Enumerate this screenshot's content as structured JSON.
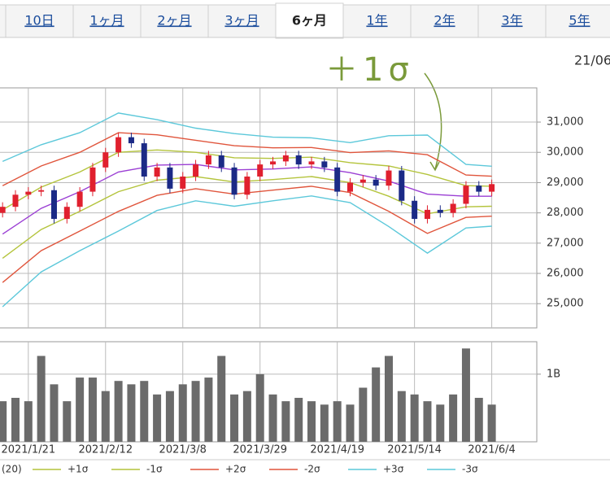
{
  "tabs": {
    "items": [
      "10日",
      "1ヶ月",
      "2ヶ月",
      "3ヶ月",
      "6ヶ月",
      "1年",
      "2年",
      "3年",
      "5年"
    ],
    "active": 4
  },
  "date_label": "21/06",
  "chart_data": [
    {
      "type": "candlestick",
      "annotation": "＋1σ",
      "x": [
        0,
        1,
        2,
        3,
        4,
        5,
        6,
        7,
        8,
        9,
        10,
        11,
        12,
        13,
        14,
        15,
        16,
        17,
        18,
        19,
        20,
        21,
        22,
        23,
        24,
        25,
        26,
        27,
        28,
        29,
        30,
        31,
        32,
        33,
        34,
        35,
        36,
        37,
        38
      ],
      "open": [
        28000,
        28200,
        28600,
        28700,
        28750,
        27800,
        28200,
        28700,
        29500,
        30000,
        30500,
        30300,
        29200,
        29500,
        28800,
        29200,
        29600,
        29900,
        29500,
        28600,
        29200,
        29600,
        29700,
        29900,
        29600,
        29700,
        29500,
        28700,
        29000,
        29100,
        28900,
        29400,
        28400,
        27800,
        28100,
        28000,
        28300,
        28900,
        28700
      ],
      "high": [
        28350,
        28750,
        28850,
        28900,
        28900,
        28350,
        28850,
        29650,
        30150,
        30650,
        30650,
        30450,
        29650,
        29650,
        29350,
        29750,
        30050,
        30050,
        29650,
        29350,
        29750,
        29850,
        30050,
        30050,
        29850,
        29850,
        29650,
        29150,
        29250,
        29250,
        29550,
        29550,
        28550,
        28250,
        28250,
        28450,
        29050,
        29050,
        29100
      ],
      "low": [
        27850,
        28050,
        28450,
        28550,
        27650,
        27650,
        28050,
        28550,
        29350,
        29850,
        30150,
        29050,
        29050,
        28650,
        28650,
        29050,
        29450,
        29350,
        28450,
        28450,
        29050,
        29450,
        29550,
        29450,
        29450,
        29350,
        28550,
        28550,
        28850,
        28750,
        28750,
        28250,
        27650,
        27650,
        27850,
        27850,
        28150,
        28550,
        28550
      ],
      "close": [
        28200,
        28600,
        28700,
        28750,
        27800,
        28200,
        28700,
        29500,
        30000,
        30500,
        30300,
        29200,
        29500,
        28800,
        29200,
        29600,
        29900,
        29500,
        28600,
        29200,
        29600,
        29700,
        29900,
        29600,
        29700,
        29500,
        28700,
        29000,
        29100,
        28900,
        29400,
        28400,
        27800,
        28100,
        28000,
        28300,
        28900,
        28700,
        28950
      ],
      "up_color": "#e0202e",
      "down_color": "#1b2a86",
      "series": [
        {
          "name": "(20)",
          "color": "#9b3fd4",
          "x": [
            0,
            3,
            6,
            9,
            12,
            15,
            18,
            21,
            24,
            27,
            30,
            33,
            36,
            38
          ],
          "values": [
            27300,
            28150,
            28700,
            29350,
            29580,
            29600,
            29420,
            29450,
            29520,
            29330,
            29050,
            28620,
            28550,
            28550
          ]
        },
        {
          "name": "+1σ",
          "color": "#b4c43c",
          "x": [
            0,
            3,
            6,
            9,
            12,
            15,
            18,
            21,
            24,
            27,
            30,
            33,
            36,
            38
          ],
          "values": [
            28100,
            28850,
            29350,
            30000,
            30080,
            30000,
            29820,
            29800,
            29840,
            29660,
            29550,
            29270,
            28900,
            28880
          ]
        },
        {
          "name": "-1σ",
          "color": "#b4c43c",
          "x": [
            0,
            3,
            6,
            9,
            12,
            15,
            18,
            21,
            24,
            27,
            30,
            33,
            36,
            38
          ],
          "values": [
            26500,
            27450,
            28050,
            28700,
            29080,
            29200,
            29020,
            29100,
            29200,
            29000,
            28550,
            27970,
            28200,
            28220
          ]
        },
        {
          "name": "+2σ",
          "color": "#e0553c",
          "x": [
            0,
            3,
            6,
            9,
            12,
            15,
            18,
            21,
            24,
            27,
            30,
            33,
            36,
            38
          ],
          "values": [
            28900,
            29550,
            30000,
            30650,
            30580,
            30400,
            30220,
            30150,
            30160,
            29990,
            30050,
            29920,
            29250,
            29210
          ]
        },
        {
          "name": "-2σ",
          "color": "#e0553c",
          "x": [
            0,
            3,
            6,
            9,
            12,
            15,
            18,
            21,
            24,
            27,
            30,
            33,
            36,
            38
          ],
          "values": [
            25700,
            26750,
            27400,
            28050,
            28580,
            28800,
            28620,
            28750,
            28880,
            28670,
            28050,
            27320,
            27850,
            27890
          ]
        },
        {
          "name": "+3σ",
          "color": "#5cc8da",
          "x": [
            0,
            3,
            6,
            9,
            12,
            15,
            18,
            21,
            24,
            27,
            30,
            33,
            36,
            38
          ],
          "values": [
            29700,
            30250,
            30650,
            31300,
            31080,
            30800,
            30620,
            30500,
            30480,
            30320,
            30550,
            30570,
            29600,
            29540
          ]
        },
        {
          "name": "-3σ",
          "color": "#5cc8da",
          "x": [
            0,
            3,
            6,
            9,
            12,
            15,
            18,
            21,
            24,
            27,
            30,
            33,
            36,
            38
          ],
          "values": [
            24900,
            26050,
            26750,
            27400,
            28080,
            28400,
            28220,
            28400,
            28560,
            28340,
            27550,
            26670,
            27500,
            27560
          ]
        }
      ],
      "xlim": [
        -0.2,
        41.5
      ],
      "ylim": [
        24200,
        32130
      ],
      "yticks": [
        {
          "value": 25000,
          "label": "25,000"
        },
        {
          "value": 26000,
          "label": "26,000"
        },
        {
          "value": 27000,
          "label": "27,000"
        },
        {
          "value": 28000,
          "label": "28,000"
        },
        {
          "value": 29000,
          "label": "29,000"
        },
        {
          "value": 30000,
          "label": "30,000"
        },
        {
          "value": 31000,
          "label": "31,000"
        }
      ],
      "grid": true
    },
    {
      "type": "bar",
      "x": [
        0,
        1,
        2,
        3,
        4,
        5,
        6,
        7,
        8,
        9,
        10,
        11,
        12,
        13,
        14,
        15,
        16,
        17,
        18,
        19,
        20,
        21,
        22,
        23,
        24,
        25,
        26,
        27,
        28,
        29,
        30,
        31,
        32,
        33,
        34,
        35,
        36,
        37,
        38
      ],
      "values": [
        600000000,
        650000000,
        600000000,
        1270000000,
        850000000,
        600000000,
        950000000,
        950000000,
        750000000,
        900000000,
        850000000,
        900000000,
        700000000,
        750000000,
        850000000,
        900000000,
        950000000,
        1270000000,
        700000000,
        750000000,
        1000000000,
        700000000,
        600000000,
        650000000,
        600000000,
        550000000,
        600000000,
        550000000,
        800000000,
        1100000000,
        1270000000,
        750000000,
        700000000,
        600000000,
        550000000,
        700000000,
        1380000000,
        650000000,
        550000000
      ],
      "color": "#6b6b6b",
      "xlim": [
        -0.2,
        41.5
      ],
      "ylim": [
        0,
        1480000000
      ],
      "yticks": [
        {
          "value": 1000000000,
          "label": "1B"
        }
      ],
      "xticks": [
        {
          "value": 2,
          "label": "2021/1/21"
        },
        {
          "value": 8,
          "label": "2021/2/12"
        },
        {
          "value": 14,
          "label": "2021/3/8"
        },
        {
          "value": 20,
          "label": "2021/3/29"
        },
        {
          "value": 26,
          "label": "2021/4/19"
        },
        {
          "value": 32,
          "label": "2021/5/14"
        },
        {
          "value": 38,
          "label": "2021/6/4"
        }
      ],
      "grid": true
    }
  ]
}
